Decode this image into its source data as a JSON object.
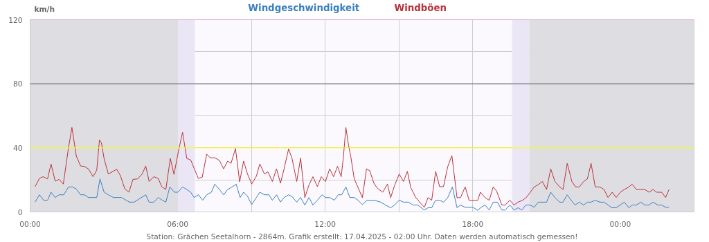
{
  "chart_data": {
    "type": "line",
    "ylabel": "km/h",
    "grid": true,
    "xlim": [
      0,
      27
    ],
    "ylim": [
      0,
      120
    ],
    "xticks": [
      {
        "value": 0,
        "label": "00:00"
      },
      {
        "value": 3,
        "label": null
      },
      {
        "value": 6,
        "label": "06:00"
      },
      {
        "value": 9,
        "label": null
      },
      {
        "value": 12,
        "label": "12:00"
      },
      {
        "value": 15,
        "label": null
      },
      {
        "value": 18,
        "label": "18:00"
      },
      {
        "value": 21,
        "label": null
      },
      {
        "value": 24,
        "label": "00:00"
      },
      {
        "value": 26,
        "label": null
      }
    ],
    "yticks": [
      0,
      {
        "value": 20,
        "label": null
      },
      40,
      {
        "value": 60,
        "label": null
      },
      80,
      {
        "value": 100,
        "label": null
      },
      120
    ],
    "bands": [
      {
        "axis": "x",
        "from": 0,
        "to": 6,
        "color": "#dedee2"
      },
      {
        "axis": "x",
        "from": 6,
        "to": 6.7,
        "color": "#ebe6f5"
      },
      {
        "axis": "x",
        "from": 19.6,
        "to": 20.3,
        "color": "#ebe6f5"
      },
      {
        "axis": "x",
        "from": 20.3,
        "to": 27,
        "color": "#dedee2"
      }
    ],
    "ref_lines": [
      {
        "axis": "y",
        "value": 40,
        "color": "#ffff00"
      },
      {
        "axis": "y",
        "value": 80,
        "color": "#555555"
      },
      {
        "axis": "y",
        "value": 120,
        "color": "#ee82ee"
      }
    ],
    "series": [
      {
        "name": "Windgeschwindigkeit",
        "color": "#3a7fc0",
        "x": [
          0.2,
          0.38,
          0.55,
          0.71,
          0.85,
          1.02,
          1.18,
          1.37,
          1.56,
          1.72,
          1.88,
          2.05,
          2.21,
          2.37,
          2.71,
          2.84,
          3.01,
          3.18,
          3.39,
          3.71,
          4.04,
          4.23,
          4.7,
          4.84,
          5.03,
          5.21,
          5.38,
          5.52,
          5.68,
          5.87,
          6.01,
          6.2,
          6.37,
          6.53,
          6.67,
          6.84,
          7.02,
          7.18,
          7.37,
          7.51,
          7.7,
          7.87,
          8.03,
          8.21,
          8.38,
          8.54,
          8.68,
          8.84,
          9.01,
          9.2,
          9.34,
          9.53,
          9.71,
          9.85,
          10.02,
          10.18,
          10.32,
          10.51,
          10.65,
          10.84,
          11.0,
          11.17,
          11.34,
          11.5,
          11.68,
          11.87,
          12.01,
          12.2,
          12.37,
          12.53,
          12.67,
          12.84,
          13.0,
          13.18,
          13.33,
          13.51,
          13.7,
          13.98,
          14.26,
          14.45,
          14.66,
          14.82,
          15.01,
          15.18,
          15.39,
          15.57,
          15.76,
          16.03,
          16.18,
          16.33,
          16.49,
          16.65,
          16.81,
          16.98,
          17.17,
          17.36,
          17.5,
          17.69,
          18.01,
          18.2,
          18.34,
          18.5,
          18.67,
          18.83,
          19.0,
          19.18,
          19.32,
          19.51,
          19.68,
          19.84,
          20.0,
          20.15,
          20.34,
          20.5,
          20.66,
          21.0,
          21.17,
          21.34,
          21.53,
          21.67,
          21.84,
          22.0,
          22.16,
          22.33,
          22.51,
          22.66,
          22.81,
          22.98,
          23.17,
          23.34,
          23.5,
          23.66,
          23.83,
          24.16,
          24.35,
          24.48,
          24.65,
          24.84,
          25.0,
          25.16,
          25.33,
          25.52,
          25.68,
          25.84,
          25.98
        ],
        "values": [
          6.1,
          10.7,
          7.3,
          7.3,
          12.3,
          9.0,
          10.7,
          10.7,
          15.6,
          15.6,
          14.3,
          10.7,
          10.7,
          9.0,
          9.0,
          20.6,
          12.3,
          10.7,
          9.0,
          9.0,
          6.1,
          6.1,
          10.7,
          6.1,
          6.1,
          9.0,
          7.3,
          6.1,
          15.6,
          12.3,
          12.3,
          15.6,
          14.0,
          12.3,
          9.0,
          10.7,
          7.3,
          10.7,
          12.3,
          17.3,
          14.0,
          10.7,
          14.0,
          15.6,
          17.3,
          9.0,
          12.3,
          9.8,
          4.6,
          9.0,
          12.3,
          10.7,
          10.7,
          7.3,
          10.7,
          6.1,
          8.9,
          10.7,
          9.6,
          6.1,
          9.0,
          4.3,
          9.0,
          4.3,
          7.3,
          10.7,
          9.0,
          8.9,
          7.3,
          10.7,
          10.7,
          15.6,
          9.0,
          9.0,
          7.3,
          4.6,
          7.3,
          7.3,
          6.1,
          4.3,
          2.6,
          4.3,
          7.3,
          6.1,
          6.1,
          4.3,
          4.3,
          1.2,
          2.6,
          2.6,
          7.3,
          7.3,
          6.1,
          8.9,
          15.6,
          2.6,
          4.3,
          2.9,
          2.9,
          1.0,
          2.9,
          4.3,
          1.2,
          6.1,
          6.1,
          1.2,
          1.2,
          4.3,
          1.2,
          2.6,
          1.2,
          4.3,
          4.3,
          2.9,
          6.1,
          6.1,
          12.3,
          9.0,
          6.1,
          6.1,
          10.7,
          7.3,
          4.3,
          6.1,
          4.3,
          6.1,
          6.1,
          7.3,
          6.1,
          6.1,
          4.3,
          2.6,
          2.6,
          6.1,
          2.6,
          4.3,
          4.3,
          6.1,
          4.3,
          4.3,
          6.1,
          4.3,
          4.3,
          2.9,
          2.9
        ]
      },
      {
        "name": "Windböen",
        "color": "#b8333a",
        "x": [
          0.2,
          0.38,
          0.52,
          0.71,
          0.85,
          1.02,
          1.18,
          1.35,
          1.56,
          1.7,
          1.88,
          2.05,
          2.21,
          2.37,
          2.56,
          2.71,
          2.82,
          2.9,
          3.01,
          3.18,
          3.52,
          3.67,
          3.85,
          4.02,
          4.18,
          4.37,
          4.56,
          4.7,
          4.84,
          5.03,
          5.21,
          5.35,
          5.52,
          5.7,
          5.85,
          6.04,
          6.2,
          6.37,
          6.53,
          6.84,
          7.0,
          7.18,
          7.32,
          7.51,
          7.7,
          7.87,
          8.03,
          8.17,
          8.35,
          8.52,
          8.68,
          8.84,
          9.01,
          9.2,
          9.34,
          9.53,
          9.67,
          9.85,
          10.02,
          10.18,
          10.32,
          10.51,
          10.65,
          10.84,
          11.0,
          11.17,
          11.34,
          11.5,
          11.68,
          11.84,
          12.01,
          12.18,
          12.34,
          12.5,
          12.65,
          12.74,
          12.84,
          12.95,
          13.04,
          13.18,
          13.33,
          13.51,
          13.68,
          13.81,
          13.98,
          14.12,
          14.34,
          14.53,
          14.66,
          14.82,
          15.01,
          15.18,
          15.34,
          15.48,
          15.67,
          15.86,
          16.03,
          16.18,
          16.33,
          16.49,
          16.65,
          16.81,
          16.98,
          17.15,
          17.36,
          17.5,
          17.69,
          17.85,
          18.2,
          18.31,
          18.5,
          18.67,
          18.83,
          18.97,
          19.18,
          19.32,
          19.51,
          19.68,
          19.84,
          20.03,
          20.17,
          20.34,
          20.5,
          20.69,
          20.83,
          21.0,
          21.17,
          21.34,
          21.53,
          21.67,
          21.84,
          22.03,
          22.18,
          22.33,
          22.51,
          22.66,
          22.81,
          22.98,
          23.17,
          23.34,
          23.5,
          23.67,
          23.83,
          24.0,
          24.16,
          24.35,
          24.48,
          24.65,
          25.0,
          25.16,
          25.33,
          25.47,
          25.68,
          25.84,
          25.98
        ],
        "values": [
          15.8,
          20.9,
          22.0,
          20.6,
          30.0,
          19.2,
          20.3,
          17.4,
          40.0,
          52.7,
          34.8,
          28.7,
          28.4,
          26.9,
          22.0,
          26.2,
          44.9,
          43.1,
          33.1,
          23.7,
          26.6,
          22.7,
          14.4,
          12.3,
          20.3,
          20.6,
          23.7,
          28.7,
          19.0,
          22.0,
          20.9,
          15.8,
          14.0,
          33.4,
          23.4,
          38.6,
          49.7,
          33.4,
          32.4,
          20.9,
          21.7,
          36.1,
          33.8,
          33.8,
          32.1,
          26.9,
          31.7,
          30.3,
          39.6,
          18.8,
          31.7,
          23.7,
          17.4,
          22.3,
          30.0,
          23.7,
          25.0,
          19.0,
          26.9,
          17.9,
          26.4,
          39.3,
          33.4,
          19.0,
          33.6,
          8.9,
          16.8,
          22.0,
          15.8,
          22.0,
          19.0,
          26.9,
          22.0,
          28.5,
          22.0,
          34.5,
          52.7,
          41.4,
          34.5,
          20.6,
          15.4,
          8.9,
          26.9,
          25.7,
          17.9,
          14.8,
          12.3,
          17.4,
          8.9,
          16.5,
          23.7,
          19.0,
          25.3,
          15.1,
          9.3,
          5.7,
          2.9,
          8.9,
          7.3,
          25.3,
          15.8,
          15.8,
          28.2,
          35.2,
          8.9,
          8.9,
          15.6,
          7.3,
          7.3,
          12.3,
          8.9,
          7.3,
          15.6,
          13.0,
          4.3,
          4.3,
          7.3,
          4.3,
          6.1,
          7.3,
          8.9,
          12.3,
          15.6,
          17.3,
          19.0,
          14.0,
          26.9,
          19.0,
          15.6,
          14.0,
          30.3,
          19.0,
          15.6,
          15.6,
          19.0,
          20.6,
          30.3,
          15.6,
          15.6,
          14.0,
          9.0,
          12.3,
          9.0,
          12.3,
          14.0,
          15.6,
          17.3,
          14.0,
          14.0,
          12.3,
          14.0,
          12.3,
          12.3,
          9.0,
          14.0
        ]
      }
    ],
    "annotations": [
      "Station: Grächen Seetalhorn - 2864m. Grafik erstellt: 17.04.2025 - 02:00 Uhr. Daten werden automatisch gemessen!"
    ]
  }
}
